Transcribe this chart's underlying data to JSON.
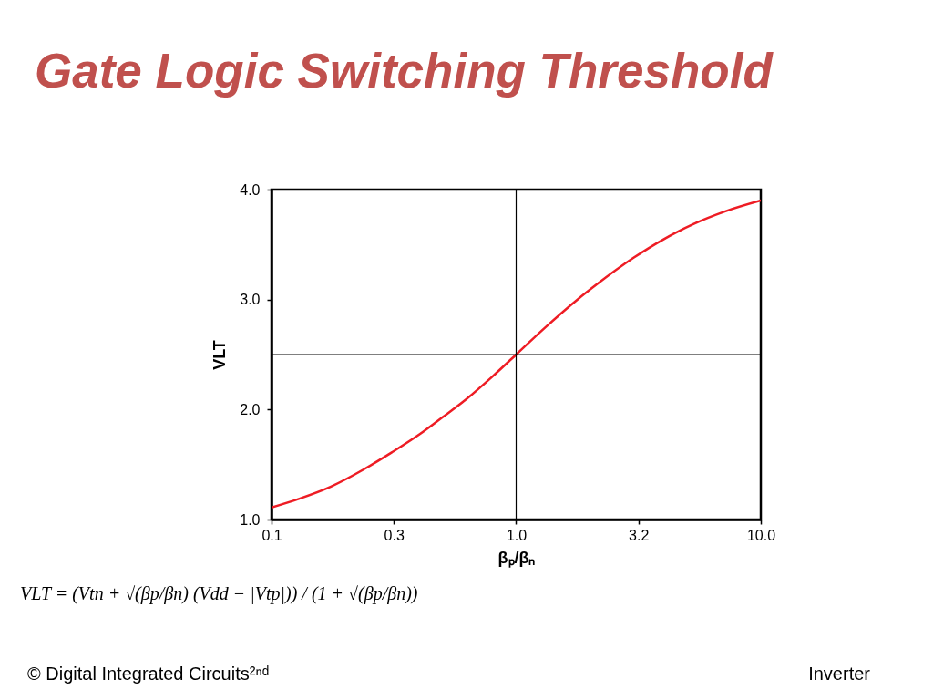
{
  "chart_data": {
    "type": "line",
    "title": "Gate Logic Switching Threshold",
    "xlabel": "βₚ/βₙ",
    "ylabel": "VLT",
    "x": [
      0.1,
      0.13,
      0.175,
      0.24,
      0.31,
      0.4,
      0.5,
      0.63,
      0.8,
      1.0,
      1.32,
      1.78,
      2.14,
      3.02,
      4.02,
      5.35,
      7.12,
      10
    ],
    "series": [
      {
        "color": "#ee1c24",
        "values": [
          1.11,
          1.19,
          1.3,
          1.46,
          1.61,
          1.77,
          1.93,
          2.1,
          2.3,
          2.5,
          2.75,
          3.0,
          3.14,
          3.38,
          3.55,
          3.69,
          3.8,
          3.9
        ]
      }
    ],
    "xlim": [
      0.1,
      10
    ],
    "ylim": [
      1,
      4
    ],
    "log": "x",
    "xticks": [
      {
        "value": 0.1,
        "label": "0.1"
      },
      {
        "value": 0.316,
        "label": "0.3"
      },
      {
        "value": 1,
        "label": "1.0"
      },
      {
        "value": 3.16,
        "label": "3.2"
      },
      {
        "value": 10,
        "label": "10.0"
      }
    ],
    "yticks": [
      {
        "value": 1,
        "label": "1.0"
      },
      {
        "value": 2,
        "label": "2.0"
      },
      {
        "value": 3,
        "label": "3.0"
      },
      {
        "value": 4,
        "label": "4.0"
      }
    ],
    "ref_lines": [
      {
        "axis": "x",
        "value": 1,
        "color": "#000000"
      },
      {
        "axis": "y",
        "value": 2.5,
        "color": "#000000"
      }
    ],
    "annotations": [
      "VLT = (Vtn + √(βp/βn) (Vdd − |Vtp|)) / (1 + √(βp/βn))",
      "© Digital Integrated Circuits²ⁿᵈ",
      "Inverter"
    ],
    "grid": false,
    "line_style": "solid"
  }
}
